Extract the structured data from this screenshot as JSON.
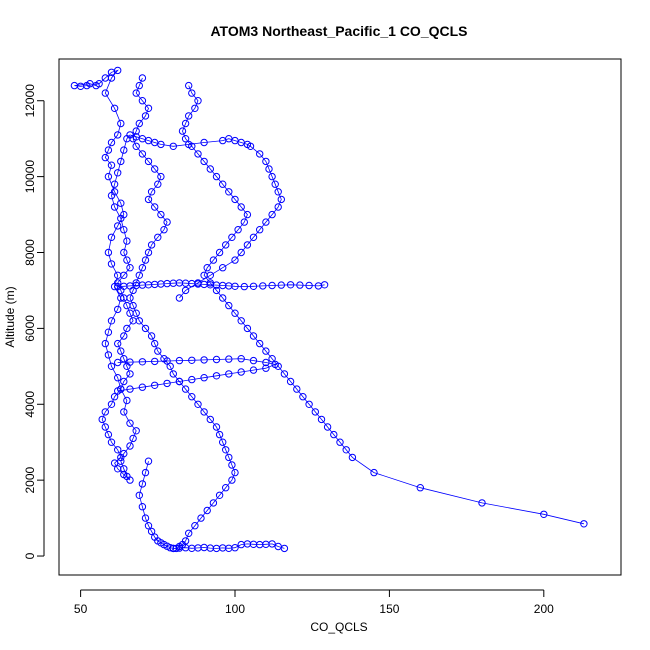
{
  "chart_data": {
    "type": "scatter",
    "title": "ATOM3 Northeast_Pacific_1 CO_QCLS",
    "xlabel": "CO_QCLS",
    "ylabel": "Altitude (m)",
    "xlim": [
      43,
      225
    ],
    "ylim": [
      -500,
      13100
    ],
    "xticks": [
      50,
      100,
      150,
      200
    ],
    "yticks": [
      0,
      2000,
      4000,
      6000,
      8000,
      10000,
      12000
    ],
    "xtick_labels": [
      "50",
      "100",
      "150",
      "200"
    ],
    "ytick_labels": [
      "0",
      "2000",
      "4000",
      "6000",
      "8000",
      "10000",
      "12000"
    ],
    "grid": false,
    "legend": "none",
    "style": "points joined by lines (open circles)",
    "color": "#0000ff",
    "series": [
      {
        "x": [
          55,
          53,
          48,
          50,
          52,
          56,
          58,
          60,
          62,
          60,
          58,
          61,
          63,
          62,
          60,
          59,
          58,
          60,
          59,
          61,
          63,
          64,
          62,
          60,
          59,
          60,
          62,
          61,
          63,
          62,
          60,
          59,
          58,
          59,
          60,
          62,
          63,
          65,
          64,
          66,
          68,
          67,
          66,
          64,
          63,
          64,
          65,
          66,
          64,
          62,
          61,
          63,
          62,
          60,
          59,
          58,
          57,
          58,
          60,
          61,
          63,
          64,
          66,
          65,
          64,
          63,
          62,
          64,
          65,
          67,
          66,
          65,
          64,
          63,
          62,
          64,
          66,
          65,
          64,
          65,
          64,
          63,
          61,
          60,
          61,
          62,
          63,
          64,
          65,
          66,
          68,
          70,
          72,
          74,
          76,
          80,
          85,
          90,
          96,
          98,
          100,
          102,
          104,
          105,
          108,
          110,
          111,
          112,
          113,
          114,
          115,
          114,
          112,
          110,
          108,
          106,
          104,
          102,
          100,
          96,
          92,
          88,
          84,
          82
        ],
        "y": [
          12400,
          12450,
          12400,
          12380,
          12400,
          12450,
          12600,
          12750,
          12800,
          12600,
          12200,
          11800,
          11400,
          11100,
          10900,
          10700,
          10500,
          10300,
          10000,
          9600,
          9300,
          9000,
          8700,
          8400,
          8000,
          7700,
          7400,
          7100,
          6800,
          6500,
          6200,
          5900,
          5600,
          5300,
          5000,
          4700,
          4400,
          4100,
          3800,
          3500,
          3300,
          3100,
          2900,
          2700,
          2500,
          2300,
          2100,
          2000,
          2150,
          2300,
          2450,
          2600,
          2800,
          3000,
          3200,
          3400,
          3600,
          3800,
          4000,
          4200,
          4400,
          4600,
          4800,
          5000,
          5200,
          5400,
          5600,
          5800,
          6000,
          6200,
          6400,
          6600,
          6800,
          7000,
          7200,
          7400,
          7600,
          7800,
          8000,
          8300,
          8600,
          8900,
          9200,
          9500,
          9800,
          10100,
          10400,
          10700,
          11000,
          11100,
          11050,
          11000,
          10950,
          10900,
          10850,
          10800,
          10850,
          10900,
          10950,
          11000,
          10950,
          10900,
          10850,
          10800,
          10600,
          10400,
          10200,
          10000,
          9800,
          9600,
          9400,
          9200,
          9000,
          8800,
          8600,
          8400,
          8200,
          8000,
          7800,
          7600,
          7400,
          7200,
          7000,
          6800
        ]
      },
      {
        "x": [
          70,
          69,
          68,
          70,
          72,
          71,
          69,
          68,
          67,
          68,
          70,
          72,
          74,
          76,
          75,
          73,
          72,
          74,
          76,
          78,
          77,
          75,
          73,
          72,
          71,
          70,
          69,
          68,
          67,
          66,
          67,
          68,
          69,
          71,
          73,
          74,
          75,
          77,
          79,
          80,
          82,
          84,
          86,
          88,
          90,
          92,
          94,
          95,
          96,
          97,
          98,
          99,
          100,
          99,
          97,
          95,
          93,
          91,
          89,
          87,
          85,
          84,
          83,
          82,
          81,
          80,
          79,
          78,
          77,
          76,
          75,
          74,
          73,
          72,
          71,
          70,
          69,
          70,
          71,
          72
        ],
        "y": [
          12600,
          12400,
          12200,
          12000,
          11800,
          11600,
          11400,
          11200,
          11000,
          10800,
          10600,
          10400,
          10200,
          10000,
          9800,
          9600,
          9400,
          9200,
          9000,
          8800,
          8600,
          8400,
          8200,
          8000,
          7800,
          7600,
          7400,
          7200,
          7000,
          6800,
          6600,
          6400,
          6200,
          6000,
          5800,
          5600,
          5400,
          5200,
          5000,
          4800,
          4600,
          4400,
          4200,
          4000,
          3800,
          3600,
          3400,
          3200,
          3000,
          2800,
          2600,
          2400,
          2200,
          2000,
          1800,
          1600,
          1400,
          1200,
          1000,
          800,
          600,
          400,
          300,
          250,
          200,
          200,
          220,
          260,
          300,
          350,
          400,
          500,
          650,
          800,
          1000,
          1300,
          1600,
          1900,
          2200,
          2500
        ]
      },
      {
        "x": [
          85,
          86,
          88,
          87,
          85,
          84,
          83,
          84,
          86,
          88,
          90,
          92,
          94,
          96,
          98,
          100,
          102,
          104,
          103,
          101,
          99,
          97,
          95,
          93,
          91,
          90,
          92,
          94,
          96,
          98,
          100,
          102,
          104,
          106,
          108,
          110,
          112,
          114,
          116,
          118,
          120,
          122,
          124,
          126,
          128,
          130,
          132,
          134,
          136,
          138,
          145,
          160,
          180,
          200,
          213
        ],
        "y": [
          12400,
          12200,
          12000,
          11800,
          11600,
          11400,
          11200,
          11000,
          10800,
          10600,
          10400,
          10200,
          10000,
          9800,
          9600,
          9400,
          9200,
          9000,
          8800,
          8600,
          8400,
          8200,
          8000,
          7800,
          7600,
          7400,
          7200,
          7000,
          6800,
          6600,
          6400,
          6200,
          6000,
          5800,
          5600,
          5400,
          5200,
          5000,
          4800,
          4600,
          4400,
          4200,
          4000,
          3800,
          3600,
          3400,
          3200,
          3000,
          2800,
          2600,
          2200,
          1800,
          1400,
          1100,
          850
        ]
      },
      {
        "x": [
          62,
          64,
          66,
          68,
          70,
          72,
          74,
          76,
          78,
          80,
          82,
          84,
          86,
          88,
          90,
          92,
          94,
          96,
          98,
          100,
          103,
          106,
          109,
          112,
          115,
          118,
          121,
          124,
          127,
          129
        ],
        "y": [
          7100,
          7110,
          7120,
          7130,
          7140,
          7150,
          7160,
          7170,
          7180,
          7190,
          7200,
          7190,
          7180,
          7170,
          7160,
          7150,
          7140,
          7130,
          7120,
          7110,
          7100,
          7110,
          7120,
          7130,
          7140,
          7150,
          7140,
          7130,
          7120,
          7150
        ]
      },
      {
        "x": [
          62,
          66,
          70,
          74,
          78,
          82,
          86,
          90,
          94,
          98,
          102,
          106,
          110,
          113,
          110,
          106,
          102,
          98,
          94,
          90,
          86,
          82,
          78,
          74,
          70,
          66,
          62
        ],
        "y": [
          5100,
          5110,
          5120,
          5130,
          5140,
          5150,
          5160,
          5170,
          5180,
          5190,
          5200,
          5150,
          5100,
          5050,
          4950,
          4900,
          4850,
          4800,
          4750,
          4700,
          4650,
          4600,
          4550,
          4500,
          4450,
          4400,
          4350
        ]
      },
      {
        "x": [
          80,
          82,
          84,
          86,
          88,
          90,
          92,
          94,
          96,
          98,
          100,
          102,
          104,
          106,
          108,
          110,
          112,
          114,
          116
        ],
        "y": [
          200,
          210,
          220,
          205,
          215,
          225,
          210,
          200,
          215,
          205,
          220,
          300,
          320,
          310,
          300,
          310,
          320,
          250,
          200
        ]
      }
    ]
  }
}
